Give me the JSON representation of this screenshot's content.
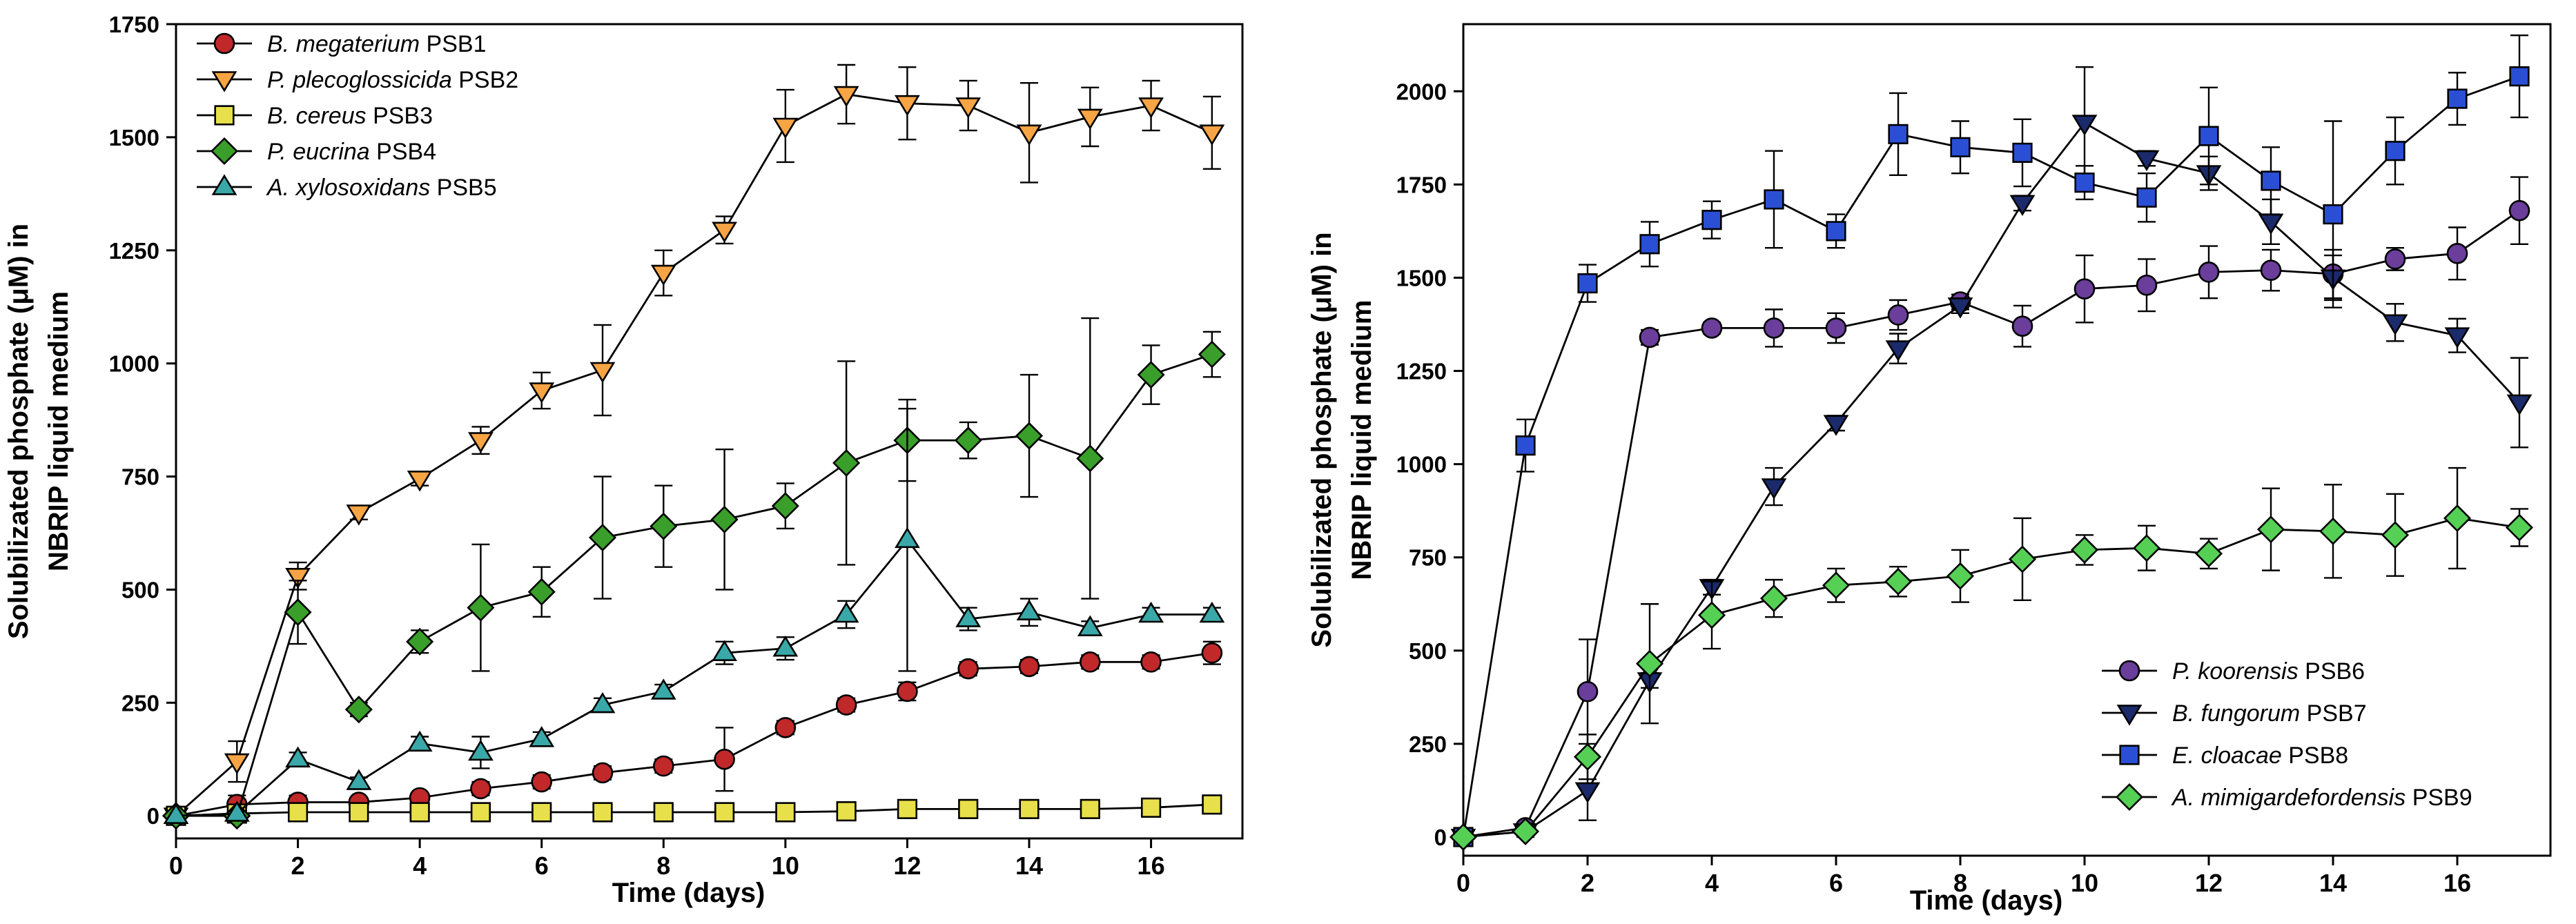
{
  "chart_data": [
    {
      "type": "line",
      "xlabel": "Time (days)",
      "ylabel": [
        "Solubilizated phosphate (μM) in",
        "NBRIP liquid medium"
      ],
      "xlim": [
        0,
        17.5
      ],
      "ylim": [
        -50,
        1750
      ],
      "xticks": [
        0,
        2,
        4,
        6,
        8,
        10,
        12,
        14,
        16
      ],
      "yticks": [
        0,
        250,
        500,
        750,
        1000,
        1250,
        1500,
        1750
      ],
      "legend_position": "top-left",
      "x": [
        0,
        1,
        2,
        3,
        4,
        5,
        6,
        7,
        8,
        9,
        10,
        11,
        12,
        13,
        14,
        15,
        16,
        17
      ],
      "series": [
        {
          "name": "B. megaterium",
          "strain": "PSB1",
          "marker": "circle",
          "color": "#c0282a",
          "values": [
            0,
            25,
            30,
            30,
            40,
            60,
            75,
            95,
            110,
            125,
            195,
            245,
            275,
            325,
            330,
            340,
            340,
            360
          ],
          "errors": [
            0,
            20,
            15,
            10,
            10,
            15,
            15,
            15,
            15,
            70,
            15,
            15,
            20,
            15,
            15,
            15,
            15,
            25
          ]
        },
        {
          "name": "P. plecoglossicida",
          "strain": "PSB2",
          "marker": "triangle-down",
          "color": "#f7a444",
          "values": [
            0,
            120,
            530,
            670,
            745,
            830,
            940,
            985,
            1200,
            1295,
            1525,
            1595,
            1575,
            1570,
            1510,
            1545,
            1570,
            1510
          ],
          "errors": [
            0,
            45,
            30,
            15,
            15,
            30,
            40,
            100,
            50,
            30,
            80,
            65,
            80,
            55,
            110,
            65,
            55,
            80
          ]
        },
        {
          "name": "B. cereus",
          "strain": "PSB3",
          "marker": "square",
          "color": "#e8e04a",
          "values": [
            0,
            5,
            8,
            8,
            8,
            8,
            8,
            8,
            8,
            8,
            8,
            10,
            15,
            15,
            15,
            15,
            18,
            25
          ],
          "errors": [
            0,
            3,
            3,
            3,
            3,
            3,
            3,
            3,
            3,
            3,
            3,
            3,
            5,
            5,
            5,
            5,
            5,
            8
          ]
        },
        {
          "name": "P. eucrina",
          "strain": "PSB4",
          "marker": "diamond",
          "color": "#3a9e2a",
          "values": [
            0,
            0,
            450,
            235,
            385,
            460,
            495,
            615,
            640,
            655,
            685,
            780,
            830,
            830,
            840,
            790,
            975,
            1020
          ],
          "errors": [
            0,
            5,
            70,
            15,
            25,
            140,
            55,
            135,
            90,
            155,
            50,
            225,
            90,
            40,
            135,
            310,
            65,
            50
          ]
        },
        {
          "name": "A. xylosoxidans",
          "strain": "PSB5",
          "marker": "triangle-up",
          "color": "#3aa8a8",
          "values": [
            0,
            5,
            125,
            75,
            160,
            140,
            170,
            245,
            275,
            360,
            370,
            445,
            610,
            435,
            450,
            415,
            445,
            445
          ],
          "errors": [
            0,
            5,
            15,
            10,
            15,
            35,
            15,
            15,
            15,
            25,
            25,
            30,
            290,
            25,
            30,
            15,
            15,
            15
          ]
        }
      ]
    },
    {
      "type": "line",
      "xlabel": "Time (days)",
      "ylabel": [
        "Solubilizated phosphate (μM) in",
        "NBRIP liquid medium"
      ],
      "xlim": [
        0,
        17.5
      ],
      "ylim": [
        -50,
        2180
      ],
      "xticks": [
        0,
        2,
        4,
        6,
        8,
        10,
        12,
        14,
        16
      ],
      "yticks": [
        0,
        250,
        500,
        750,
        1000,
        1250,
        1500,
        1750,
        2000
      ],
      "legend_position": "bottom-right",
      "x": [
        0,
        1,
        2,
        3,
        4,
        5,
        6,
        7,
        8,
        9,
        10,
        11,
        12,
        13,
        14,
        15,
        16,
        17
      ],
      "series": [
        {
          "name": "P. koorensis",
          "strain": "PSB6",
          "marker": "circle",
          "color": "#6a3e9a",
          "values": [
            0,
            25,
            390,
            1340,
            1365,
            1365,
            1365,
            1400,
            1435,
            1370,
            1470,
            1480,
            1515,
            1520,
            1510,
            1550,
            1565,
            1680
          ],
          "errors": [
            0,
            10,
            140,
            20,
            15,
            50,
            40,
            40,
            20,
            55,
            90,
            70,
            70,
            55,
            65,
            30,
            70,
            90
          ]
        },
        {
          "name": "B. fungorum",
          "strain": "PSB7",
          "marker": "triangle-down",
          "color": "#1b2a6b",
          "values": [
            0,
            15,
            125,
            420,
            670,
            940,
            1110,
            1310,
            1425,
            1700,
            1915,
            1820,
            1780,
            1650,
            1500,
            1380,
            1345,
            1165
          ],
          "errors": [
            0,
            5,
            80,
            20,
            20,
            50,
            20,
            40,
            20,
            20,
            150,
            20,
            45,
            60,
            60,
            50,
            45,
            120
          ]
        },
        {
          "name": "E. cloacae",
          "strain": "PSB8",
          "marker": "square",
          "color": "#2a4fd4",
          "values": [
            0,
            1050,
            1485,
            1590,
            1655,
            1710,
            1625,
            1885,
            1850,
            1835,
            1755,
            1715,
            1880,
            1760,
            1670,
            1840,
            1980,
            2040
          ],
          "errors": [
            0,
            70,
            50,
            60,
            50,
            130,
            45,
            110,
            70,
            90,
            45,
            65,
            130,
            90,
            250,
            90,
            70,
            110
          ]
        },
        {
          "name": "A. mimigardefordensis",
          "strain": "PSB9",
          "marker": "diamond",
          "color": "#55d055",
          "values": [
            0,
            15,
            215,
            465,
            595,
            640,
            675,
            685,
            700,
            745,
            770,
            775,
            760,
            825,
            820,
            810,
            855,
            830
          ],
          "errors": [
            0,
            15,
            60,
            160,
            90,
            50,
            45,
            40,
            70,
            110,
            40,
            60,
            40,
            110,
            125,
            110,
            135,
            50
          ]
        }
      ]
    }
  ]
}
